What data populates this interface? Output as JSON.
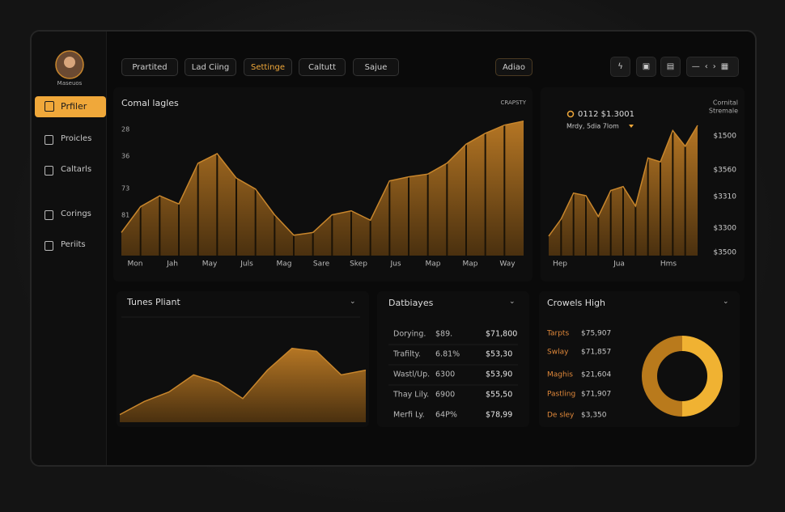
{
  "sidebar": {
    "user": "Maseuos",
    "items": [
      "Prfiler",
      "Proicles",
      "Caltarls",
      "Corings",
      "Periits"
    ]
  },
  "toolbar": {
    "tabs": [
      "Prartited",
      "Lad Ciing",
      "Settinge",
      "Caltutt",
      "Sajue"
    ],
    "action": "Adiao"
  },
  "main_chart": {
    "type": "area",
    "title": "Comal lagles",
    "tag": "CRAPSTY",
    "axis_labels": [
      "28",
      "36",
      "73",
      "81"
    ],
    "x_labels": [
      "Mon",
      "Jah",
      "May",
      "Juls",
      "Mag",
      "Sare",
      "Skep",
      "Jus",
      "Map",
      "Map",
      "Way"
    ],
    "values": [
      17,
      36,
      44,
      38,
      68,
      75,
      57,
      49,
      30,
      15,
      17,
      30,
      33,
      26,
      55,
      58,
      60,
      68,
      82,
      90,
      96,
      99
    ],
    "ylim": [
      0,
      100
    ],
    "color": "#c8862c"
  },
  "side_chart": {
    "type": "area",
    "header": [
      "Cornital",
      "Stremale"
    ],
    "legend": "0112 $1.3001",
    "filter": "Mrdy, 5dia 7lom",
    "axis_labels": [
      "$1500",
      "$3560",
      "$3310",
      "$3300",
      "$3500"
    ],
    "x_labels": [
      "Hep",
      "Jua",
      "Hms"
    ],
    "values": [
      15,
      28,
      48,
      46,
      30,
      50,
      53,
      38,
      75,
      72,
      96,
      84,
      100
    ],
    "ylim": [
      0,
      100
    ],
    "color": "#c8862c"
  },
  "trend_chart": {
    "type": "area",
    "title": "Tunes Pliant",
    "values": [
      8,
      22,
      32,
      50,
      42,
      25,
      55,
      78,
      75,
      50,
      55
    ],
    "ylim": [
      0,
      100
    ],
    "color": "#c8862c"
  },
  "table": {
    "title": "Datbiayes",
    "rows": [
      [
        "Dorying.",
        "$89.",
        "$71,800"
      ],
      [
        "Trafilty.",
        "6.81%",
        "$53,30"
      ],
      [
        "Wastl/Up.",
        "6300",
        "$53,90"
      ],
      [
        "Thay Lily.",
        "6900",
        "$55,50"
      ],
      [
        "Merfi Ly.",
        "64P%",
        "$78,99"
      ]
    ]
  },
  "growth": {
    "title": "Crowels High",
    "rows": [
      [
        "Tarpts",
        "$75,907"
      ],
      [
        "Swlay",
        "$71,857"
      ],
      [
        "Maghis",
        "$21,604"
      ],
      [
        "Pastling",
        "$71,907"
      ],
      [
        "De sley",
        "$3,350"
      ]
    ],
    "donut": {
      "values": [
        50,
        50
      ],
      "colors": [
        "#f0b232",
        "#b97a1c"
      ]
    }
  }
}
